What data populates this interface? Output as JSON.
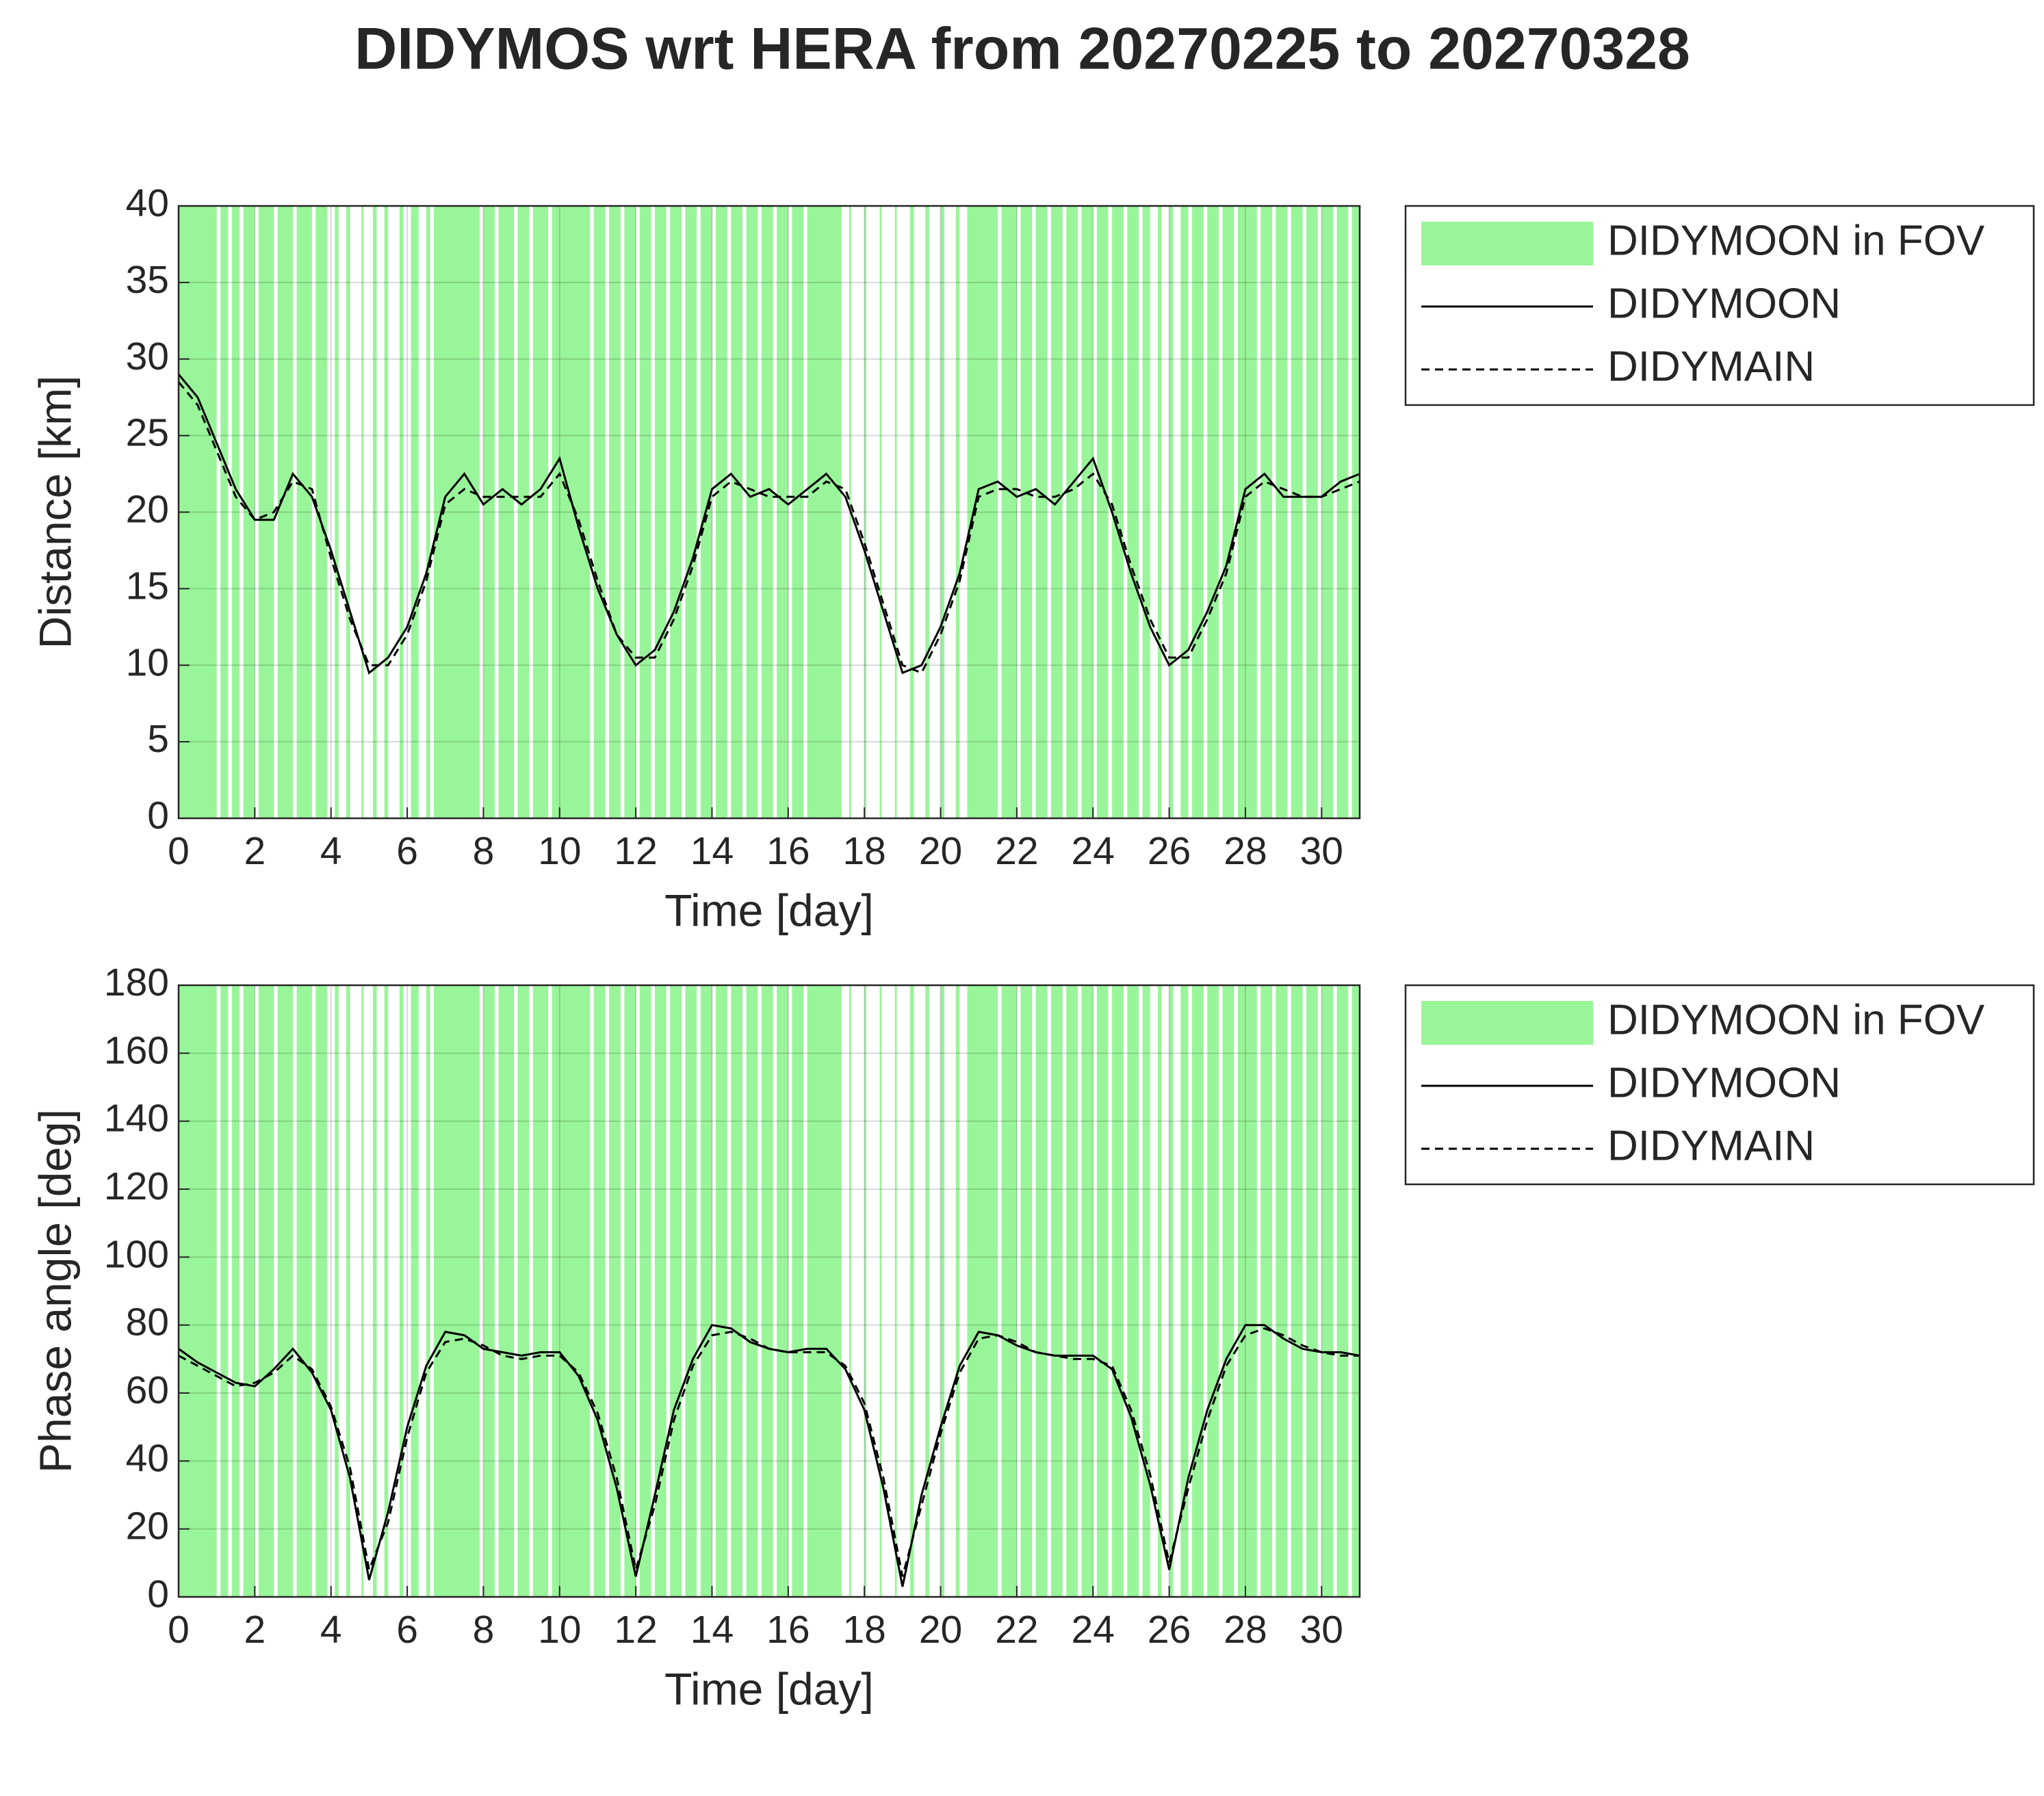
{
  "title": "DIDYMOS wrt HERA from 20270225 to 20270328",
  "chart_data": [
    {
      "type": "line",
      "xlabel": "Time [day]",
      "ylabel": "Distance [km]",
      "xlim": [
        0,
        31
      ],
      "xticks": [
        0,
        2,
        4,
        6,
        8,
        10,
        12,
        14,
        16,
        18,
        20,
        22,
        24,
        26,
        28,
        30
      ],
      "ylim": [
        0,
        40
      ],
      "yticks": [
        0,
        5,
        10,
        15,
        20,
        25,
        30,
        35,
        40
      ],
      "grid": true,
      "x": [
        0,
        0.5,
        1,
        1.5,
        2,
        2.5,
        3,
        3.5,
        4,
        4.5,
        5,
        5.5,
        6,
        6.5,
        7,
        7.5,
        8,
        8.5,
        9,
        9.5,
        10,
        10.5,
        11,
        11.5,
        12,
        12.5,
        13,
        13.5,
        14,
        14.5,
        15,
        15.5,
        16,
        16.5,
        17,
        17.5,
        18,
        18.5,
        19,
        19.5,
        20,
        20.5,
        21,
        21.5,
        22,
        22.5,
        23,
        23.5,
        24,
        24.5,
        25,
        25.5,
        26,
        26.5,
        27,
        27.5,
        28,
        28.5,
        29,
        29.5,
        30,
        30.5,
        31
      ],
      "series": [
        {
          "name": "DIDYMOON in FOV",
          "color": "#99f599",
          "spans": [
            [
              0,
              1.0
            ],
            [
              1.1,
              1.3
            ],
            [
              1.4,
              1.6
            ],
            [
              1.7,
              2.0
            ],
            [
              2.1,
              2.5
            ],
            [
              2.6,
              3.0
            ],
            [
              3.1,
              3.5
            ],
            [
              3.6,
              3.9
            ],
            [
              4.1,
              4.2
            ],
            [
              4.4,
              4.5
            ],
            [
              4.8,
              4.85
            ],
            [
              5.1,
              5.2
            ],
            [
              5.4,
              5.5
            ],
            [
              5.8,
              5.9
            ],
            [
              6.1,
              6.3
            ],
            [
              6.5,
              6.6
            ],
            [
              6.7,
              7.9
            ],
            [
              8.0,
              8.3
            ],
            [
              8.4,
              8.8
            ],
            [
              8.9,
              9.2
            ],
            [
              9.3,
              9.7
            ],
            [
              9.8,
              10.8
            ],
            [
              10.9,
              11.2
            ],
            [
              11.3,
              11.6
            ],
            [
              11.7,
              12.0
            ],
            [
              12.1,
              12.4
            ],
            [
              12.5,
              12.8
            ],
            [
              12.9,
              13.2
            ],
            [
              13.3,
              13.6
            ],
            [
              13.7,
              14.0
            ],
            [
              14.1,
              14.4
            ],
            [
              14.5,
              14.8
            ],
            [
              14.9,
              15.2
            ],
            [
              15.3,
              15.6
            ],
            [
              15.7,
              16.0
            ],
            [
              16.1,
              16.4
            ],
            [
              16.5,
              17.4
            ],
            [
              17.6,
              17.65
            ],
            [
              18.0,
              18.05
            ],
            [
              18.4,
              18.45
            ],
            [
              18.8,
              18.85
            ],
            [
              19.2,
              19.3
            ],
            [
              19.6,
              19.7
            ],
            [
              20.0,
              20.1
            ],
            [
              20.4,
              20.5
            ],
            [
              20.7,
              21.5
            ],
            [
              21.6,
              22.0
            ],
            [
              22.1,
              22.4
            ],
            [
              22.5,
              22.8
            ],
            [
              22.9,
              23.2
            ],
            [
              23.3,
              23.6
            ],
            [
              23.7,
              24.0
            ],
            [
              24.1,
              24.4
            ],
            [
              24.5,
              24.8
            ],
            [
              24.9,
              25.2
            ],
            [
              25.3,
              25.5
            ],
            [
              25.7,
              25.8
            ],
            [
              26.0,
              26.1
            ],
            [
              26.3,
              26.5
            ],
            [
              26.6,
              26.9
            ],
            [
              27.0,
              27.3
            ],
            [
              27.4,
              27.7
            ],
            [
              27.8,
              28.3
            ],
            [
              28.4,
              28.7
            ],
            [
              28.8,
              29.1
            ],
            [
              29.2,
              29.5
            ],
            [
              29.6,
              29.9
            ],
            [
              30.0,
              30.3
            ],
            [
              30.4,
              30.7
            ],
            [
              30.8,
              31
            ]
          ]
        },
        {
          "name": "DIDYMOON",
          "color": "#000000",
          "style": "solid",
          "values": [
            29,
            27.5,
            24.5,
            21.5,
            19.5,
            19.5,
            22.5,
            21,
            17.5,
            13.5,
            9.5,
            10.5,
            12.5,
            16,
            21,
            22.5,
            20.5,
            21.5,
            20.5,
            21.5,
            23.5,
            19,
            15,
            12,
            10,
            11,
            13.5,
            17,
            21.5,
            22.5,
            21,
            21.5,
            20.5,
            21.5,
            22.5,
            21,
            17.5,
            13.5,
            9.5,
            10,
            12.5,
            16,
            21.5,
            22,
            21,
            21.5,
            20.5,
            22,
            23.5,
            20,
            16,
            12.5,
            10,
            11,
            13.5,
            16.5,
            21.5,
            22.5,
            21,
            21,
            21,
            22,
            22.5
          ]
        },
        {
          "name": "DIDYMAIN",
          "color": "#000000",
          "style": "dashed",
          "values": [
            28.5,
            27,
            24,
            21,
            19.5,
            20,
            22,
            21.5,
            17,
            13,
            10,
            10,
            12,
            15.5,
            20.5,
            21.5,
            21,
            21,
            21,
            21,
            22.5,
            19.5,
            15.5,
            12,
            10.5,
            10.5,
            13,
            16.5,
            21,
            22,
            21.5,
            21,
            21,
            21,
            22,
            21.5,
            18,
            14,
            10,
            9.5,
            12,
            15.5,
            21,
            21.5,
            21.5,
            21,
            21,
            21.5,
            22.5,
            20.5,
            16.5,
            13,
            10.5,
            10.5,
            13,
            16,
            21,
            22,
            21.5,
            21,
            21,
            21.5,
            22
          ]
        }
      ]
    },
    {
      "type": "line",
      "xlabel": "Time [day]",
      "ylabel": "Phase angle [deg]",
      "xlim": [
        0,
        31
      ],
      "xticks": [
        0,
        2,
        4,
        6,
        8,
        10,
        12,
        14,
        16,
        18,
        20,
        22,
        24,
        26,
        28,
        30
      ],
      "ylim": [
        0,
        180
      ],
      "yticks": [
        0,
        20,
        40,
        60,
        80,
        100,
        120,
        140,
        160,
        180
      ],
      "grid": true,
      "x": [
        0,
        0.5,
        1,
        1.5,
        2,
        2.5,
        3,
        3.5,
        4,
        4.5,
        5,
        5.5,
        6,
        6.5,
        7,
        7.5,
        8,
        8.5,
        9,
        9.5,
        10,
        10.5,
        11,
        11.5,
        12,
        12.5,
        13,
        13.5,
        14,
        14.5,
        15,
        15.5,
        16,
        16.5,
        17,
        17.5,
        18,
        18.5,
        19,
        19.5,
        20,
        20.5,
        21,
        21.5,
        22,
        22.5,
        23,
        23.5,
        24,
        24.5,
        25,
        25.5,
        26,
        26.5,
        27,
        27.5,
        28,
        28.5,
        29,
        29.5,
        30,
        30.5,
        31
      ],
      "series": [
        {
          "name": "DIDYMOON in FOV",
          "color": "#99f599",
          "spans": [
            [
              0,
              1.0
            ],
            [
              1.1,
              1.3
            ],
            [
              1.4,
              1.6
            ],
            [
              1.7,
              2.0
            ],
            [
              2.1,
              2.5
            ],
            [
              2.6,
              3.0
            ],
            [
              3.1,
              3.5
            ],
            [
              3.6,
              3.9
            ],
            [
              4.1,
              4.2
            ],
            [
              4.4,
              4.5
            ],
            [
              4.8,
              4.85
            ],
            [
              5.1,
              5.2
            ],
            [
              5.4,
              5.5
            ],
            [
              5.8,
              5.9
            ],
            [
              6.1,
              6.3
            ],
            [
              6.5,
              6.6
            ],
            [
              6.7,
              7.9
            ],
            [
              8.0,
              8.3
            ],
            [
              8.4,
              8.8
            ],
            [
              8.9,
              9.2
            ],
            [
              9.3,
              9.7
            ],
            [
              9.8,
              10.8
            ],
            [
              10.9,
              11.2
            ],
            [
              11.3,
              11.6
            ],
            [
              11.7,
              12.0
            ],
            [
              12.1,
              12.4
            ],
            [
              12.5,
              12.8
            ],
            [
              12.9,
              13.2
            ],
            [
              13.3,
              13.6
            ],
            [
              13.7,
              14.0
            ],
            [
              14.1,
              14.4
            ],
            [
              14.5,
              14.8
            ],
            [
              14.9,
              15.2
            ],
            [
              15.3,
              15.6
            ],
            [
              15.7,
              16.0
            ],
            [
              16.1,
              16.4
            ],
            [
              16.5,
              17.4
            ],
            [
              17.6,
              17.65
            ],
            [
              18.0,
              18.05
            ],
            [
              18.4,
              18.45
            ],
            [
              18.8,
              18.85
            ],
            [
              19.2,
              19.3
            ],
            [
              19.6,
              19.7
            ],
            [
              20.0,
              20.1
            ],
            [
              20.4,
              20.5
            ],
            [
              20.7,
              21.5
            ],
            [
              21.6,
              22.0
            ],
            [
              22.1,
              22.4
            ],
            [
              22.5,
              22.8
            ],
            [
              22.9,
              23.2
            ],
            [
              23.3,
              23.6
            ],
            [
              23.7,
              24.0
            ],
            [
              24.1,
              24.4
            ],
            [
              24.5,
              24.8
            ],
            [
              24.9,
              25.2
            ],
            [
              25.3,
              25.5
            ],
            [
              25.7,
              25.8
            ],
            [
              26.0,
              26.1
            ],
            [
              26.3,
              26.5
            ],
            [
              26.6,
              26.9
            ],
            [
              27.0,
              27.3
            ],
            [
              27.4,
              27.7
            ],
            [
              27.8,
              28.3
            ],
            [
              28.4,
              28.7
            ],
            [
              28.8,
              29.1
            ],
            [
              29.2,
              29.5
            ],
            [
              29.6,
              29.9
            ],
            [
              30.0,
              30.3
            ],
            [
              30.4,
              30.7
            ],
            [
              30.8,
              31
            ]
          ]
        },
        {
          "name": "DIDYMOON",
          "color": "#000000",
          "style": "solid",
          "values": [
            73,
            69,
            66,
            63,
            62,
            67,
            73,
            66,
            55,
            35,
            5,
            25,
            50,
            68,
            78,
            77,
            73,
            72,
            71,
            72,
            72,
            65,
            52,
            32,
            6,
            30,
            55,
            70,
            80,
            79,
            75,
            73,
            72,
            73,
            73,
            67,
            55,
            32,
            3,
            30,
            50,
            68,
            78,
            77,
            74,
            72,
            71,
            71,
            71,
            67,
            53,
            33,
            8,
            35,
            55,
            70,
            80,
            80,
            76,
            73,
            72,
            72,
            71
          ]
        },
        {
          "name": "DIDYMAIN",
          "color": "#000000",
          "style": "dashed",
          "values": [
            71,
            68,
            65,
            62,
            63,
            66,
            71,
            67,
            56,
            38,
            8,
            22,
            47,
            66,
            75,
            76,
            74,
            71,
            70,
            71,
            71,
            66,
            54,
            35,
            8,
            27,
            52,
            68,
            77,
            78,
            76,
            73,
            72,
            72,
            72,
            68,
            57,
            35,
            6,
            27,
            48,
            66,
            76,
            77,
            75,
            72,
            71,
            70,
            70,
            68,
            55,
            36,
            10,
            32,
            52,
            68,
            77,
            79,
            77,
            74,
            72,
            71,
            71
          ]
        }
      ]
    }
  ]
}
